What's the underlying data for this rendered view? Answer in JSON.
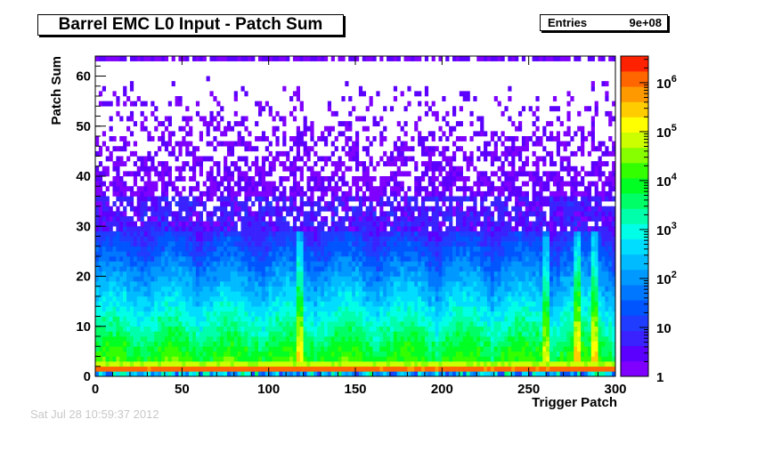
{
  "title": "Barrel EMC L0 Input - Patch Sum",
  "stats": {
    "label": "Entries",
    "value": "9e+08"
  },
  "footer_stamp": "Sat Jul 28 10:59:37 2012",
  "chart_data": {
    "type": "heatmap",
    "title": "Barrel EMC L0 Input - Patch Sum",
    "xlabel": "Trigger Patch",
    "ylabel": "Patch Sum",
    "xlim": [
      0,
      300
    ],
    "ylim": [
      0,
      64
    ],
    "x_ticks": [
      0,
      50,
      100,
      150,
      200,
      250,
      300
    ],
    "y_ticks": [
      0,
      10,
      20,
      30,
      40,
      50,
      60
    ],
    "z_scale": "log",
    "zlim": [
      1,
      3500000
    ],
    "z_tick_labels": [
      {
        "value": 1,
        "label": "1"
      },
      {
        "value": 10,
        "label": "10"
      },
      {
        "value": 100,
        "label": "10^2"
      },
      {
        "value": 1000,
        "label": "10^3"
      },
      {
        "value": 10000,
        "label": "10^4"
      },
      {
        "value": 100000,
        "label": "10^5"
      },
      {
        "value": 1000000,
        "label": "10^6"
      }
    ],
    "entries": "9e+08",
    "pedestal_row_patch_sum": 1,
    "pedestal_row_counts": 1000000,
    "saturation_row_patch_sum": 63,
    "anomalous_columns_trigger_patch": [
      118,
      260,
      278,
      288
    ],
    "palette": [
      "#7f00ff",
      "#5b00ff",
      "#3a22ff",
      "#1f3cff",
      "#0055ff",
      "#0077ff",
      "#0099ff",
      "#00bbff",
      "#00ddff",
      "#00ffe6",
      "#00ffaa",
      "#00ff66",
      "#00ff22",
      "#33ff00",
      "#88ff00",
      "#ccff00",
      "#ffff00",
      "#ffcc00",
      "#ff9900",
      "#ff6600",
      "#ff2200"
    ]
  }
}
